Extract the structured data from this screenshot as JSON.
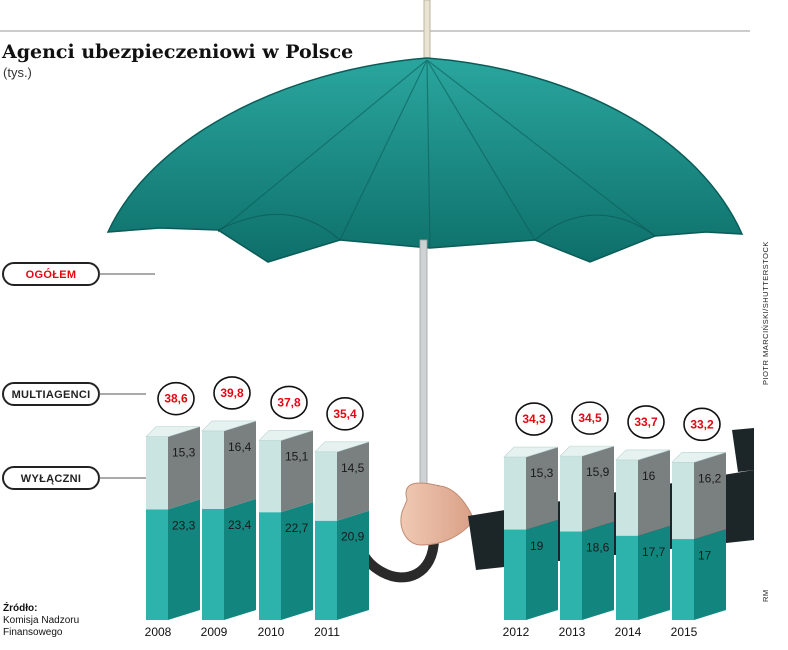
{
  "chart_data": {
    "type": "bar",
    "stacked": true,
    "title": "Agenci ubezpieczeniowi w Polsce",
    "subtitle": "(tys.)",
    "categories": [
      "2008",
      "2009",
      "2010",
      "2011",
      "2012",
      "2013",
      "2014",
      "2015"
    ],
    "series": [
      {
        "name": "WYŁĄCZNI",
        "values": [
          23.3,
          23.4,
          22.7,
          20.9,
          19,
          18.6,
          17.7,
          17
        ],
        "labels": [
          "23,3",
          "23,4",
          "22,7",
          "20,9",
          "19",
          "18,6",
          "17,7",
          "17"
        ],
        "color": "#17aaa3"
      },
      {
        "name": "MULTIAGENCI",
        "values": [
          15.3,
          16.4,
          15.1,
          14.5,
          15.3,
          15.9,
          16,
          16.2
        ],
        "labels": [
          "15,3",
          "16,4",
          "15,1",
          "14,5",
          "15,3",
          "15,9",
          "16",
          "16,2"
        ],
        "color": "#7a807f"
      }
    ],
    "totals": {
      "name": "OGÓŁEM",
      "values": [
        38.6,
        39.8,
        37.8,
        35.4,
        34.3,
        34.5,
        33.7,
        33.2
      ],
      "labels": [
        "38,6",
        "39,8",
        "37,8",
        "35,4",
        "34,3",
        "34,5",
        "33,7",
        "33,2"
      ],
      "color": "#e30613"
    }
  },
  "legend": {
    "total": "OGÓŁEM",
    "multi": "MULTIAGENCI",
    "excl": "WYŁĄCZNI"
  },
  "source": {
    "line1": "Źródło:",
    "line2": "Komisja Nadzoru",
    "line3": "Finansowego"
  },
  "credits": {
    "photo": "PIOTR MARCIŃSKI/SHUTTERSTOCK",
    "author": "RM"
  },
  "colors": {
    "accent": "#e30613",
    "teal": "#17aaa3",
    "gray": "#7a807f",
    "umbrella": "#1b8f88"
  }
}
